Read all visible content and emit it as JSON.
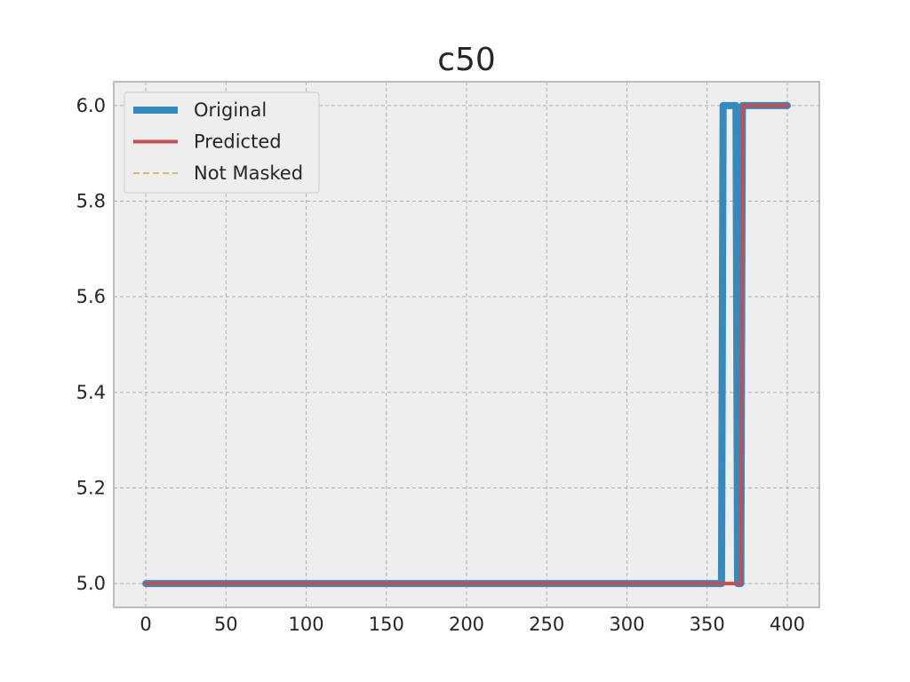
{
  "chart_data": {
    "type": "line",
    "title": "c50",
    "xlabel": "",
    "ylabel": "",
    "xlim": [
      -20,
      420
    ],
    "ylim": [
      4.95,
      6.05
    ],
    "xticks": [
      0,
      50,
      100,
      150,
      200,
      250,
      300,
      350,
      400
    ],
    "yticks": [
      5.0,
      5.2,
      5.4,
      5.6,
      5.8,
      6.0
    ],
    "ytick_labels": [
      "5.0",
      "5.2",
      "5.4",
      "5.6",
      "5.8",
      "6.0"
    ],
    "grid": true,
    "legend_position": "upper-left",
    "series": [
      {
        "name": "Original",
        "color": "#348abd",
        "style": "solid-thick",
        "x": [
          0,
          359,
          360,
          368,
          369,
          371,
          372,
          400
        ],
        "y": [
          5.0,
          5.0,
          6.0,
          6.0,
          5.0,
          5.0,
          6.0,
          6.0
        ]
      },
      {
        "name": "Predicted",
        "color": "#c44e52",
        "style": "solid",
        "x": [
          0,
          371,
          372,
          400
        ],
        "y": [
          5.0,
          5.0,
          6.0,
          6.0
        ]
      },
      {
        "name": "Not Masked",
        "color": "#ccb974",
        "style": "dashed",
        "x": [],
        "y": []
      }
    ]
  }
}
